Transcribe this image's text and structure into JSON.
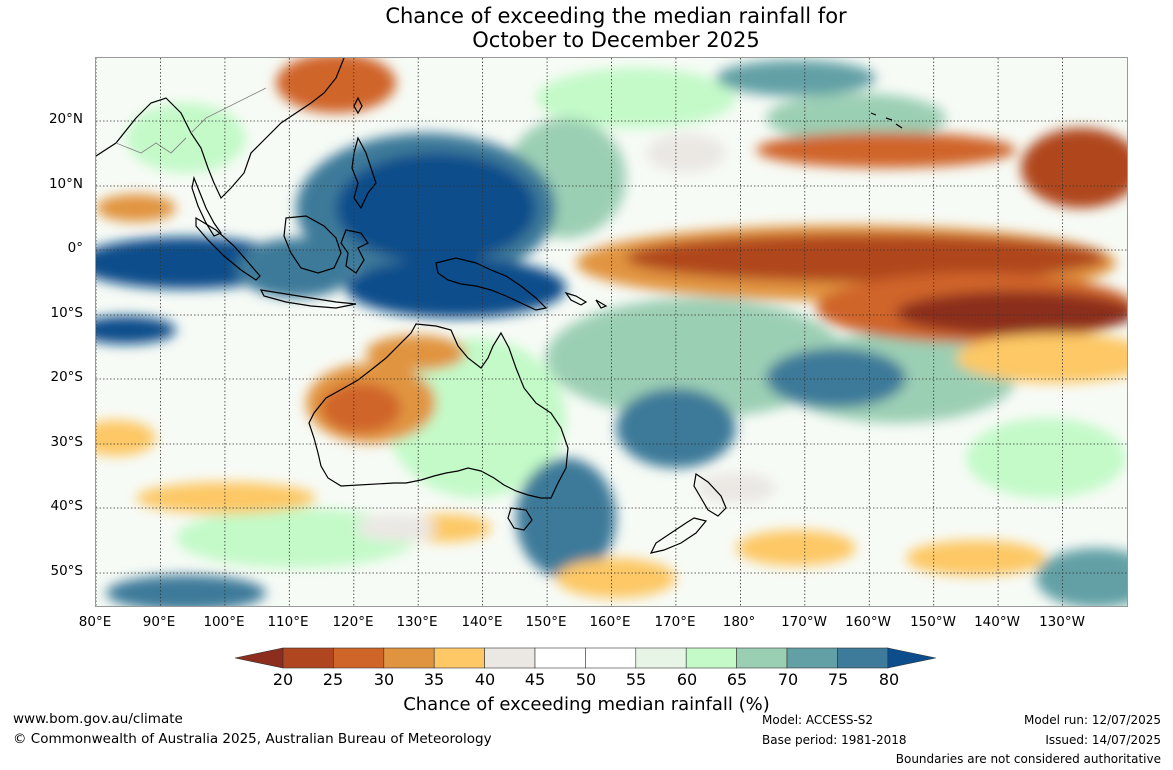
{
  "title": {
    "line1": "Chance of exceeding the median rainfall for",
    "line2": "October to December 2025"
  },
  "lat_labels": [
    "20°N",
    "10°N",
    "0°",
    "10°S",
    "20°S",
    "30°S",
    "40°S",
    "50°S"
  ],
  "lon_labels": [
    "80°E",
    "90°E",
    "100°E",
    "110°E",
    "120°E",
    "130°E",
    "140°E",
    "150°E",
    "160°E",
    "170°E",
    "180°",
    "170°W",
    "160°W",
    "150°W",
    "140°W",
    "130°W"
  ],
  "colorbar": {
    "ticks": [
      "20",
      "25",
      "30",
      "35",
      "40",
      "45",
      "50",
      "55",
      "60",
      "65",
      "70",
      "75",
      "80"
    ],
    "colors": [
      "#8c2d1e",
      "#b0461f",
      "#d0652a",
      "#e19440",
      "#fdc865",
      "#ebe8e4",
      "#ffffff",
      "#ffffff",
      "#e6f5e6",
      "#c3fac8",
      "#9bcfb4",
      "#62a0a6",
      "#3e7a9a",
      "#0d4d8b"
    ],
    "label": "Chance of exceeding median rainfall (%)"
  },
  "footer": {
    "website": "www.bom.gov.au/climate",
    "copyright": "© Commonwealth of Australia 2025, Australian Bureau of Meteorology",
    "model": "Model: ACCESS-S2",
    "base_period": "Base period: 1981-2018",
    "model_run": "Model run: 12/07/2025",
    "issued": "Issued: 14/07/2025",
    "disclaimer": "Boundaries are not considered authoritative"
  }
}
